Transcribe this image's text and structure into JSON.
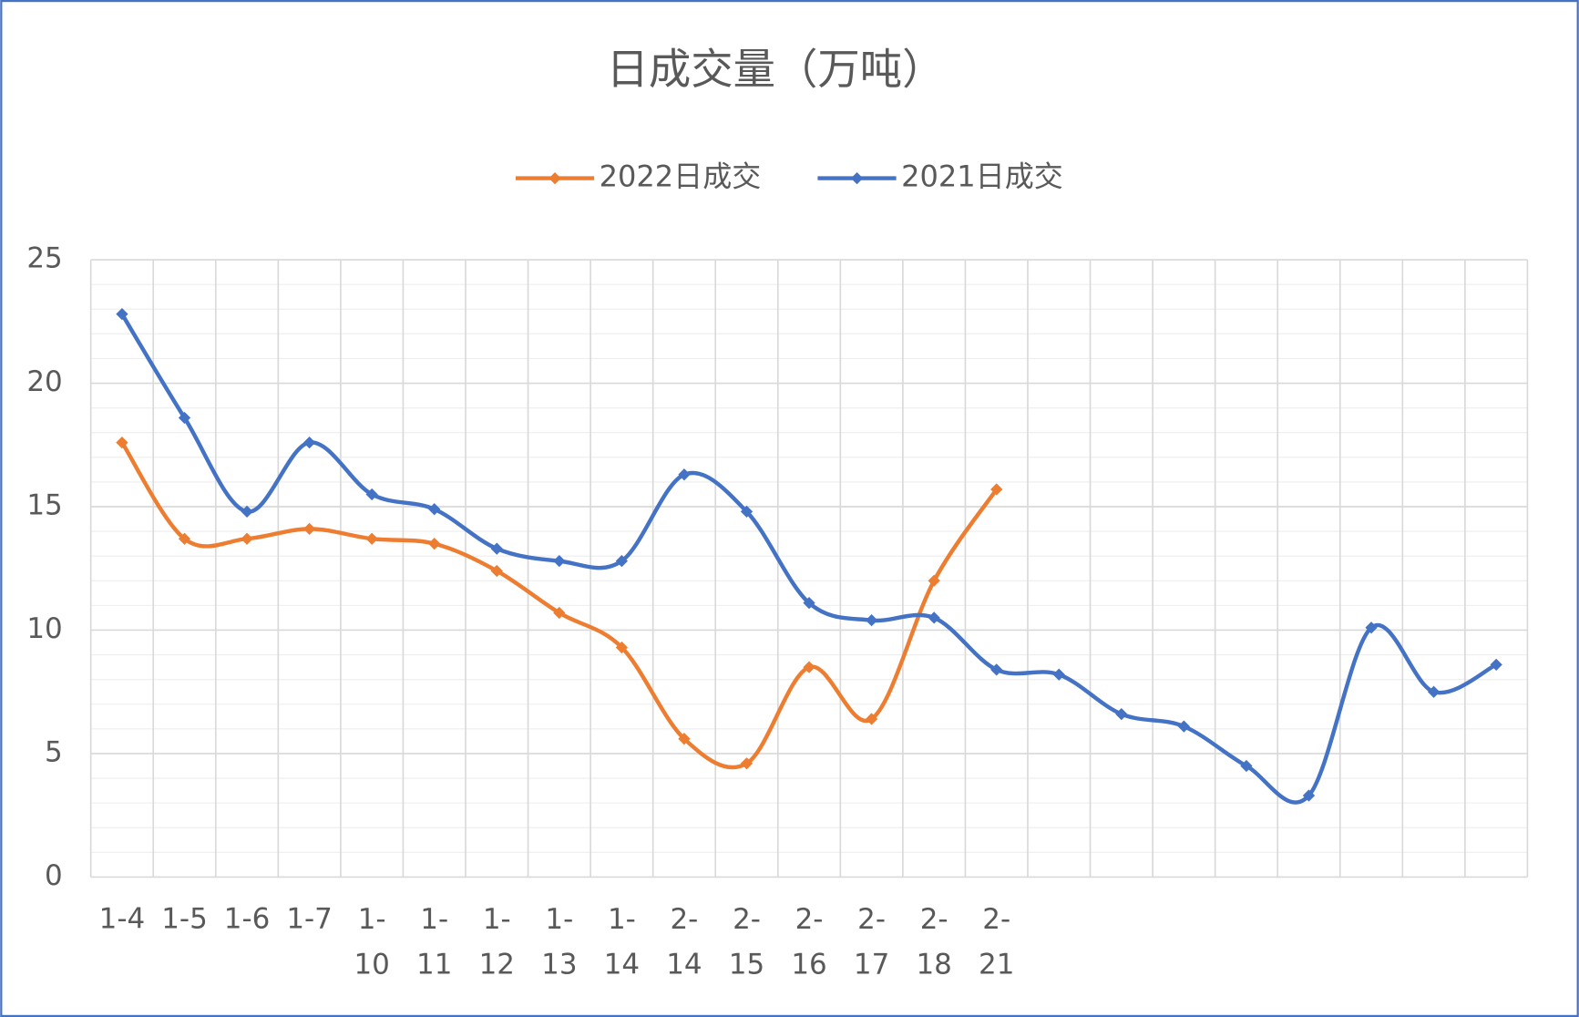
{
  "chart_data": {
    "type": "line",
    "title": "日成交量（万吨）",
    "categories": [
      "1-4",
      "1-5",
      "1-6",
      "1-7",
      "1-10",
      "1-11",
      "1-12",
      "1-13",
      "1-14",
      "2-14",
      "2-15",
      "2-16",
      "2-17",
      "2-18",
      "2-21",
      null,
      null,
      null,
      null,
      null,
      null,
      null,
      null
    ],
    "series": [
      {
        "name": "2022日成交",
        "color": "#ed7d31",
        "values": [
          17.6,
          13.7,
          13.7,
          14.1,
          13.7,
          13.5,
          12.4,
          10.7,
          9.3,
          5.6,
          4.6,
          8.5,
          6.4,
          12.0,
          15.7,
          null,
          null,
          null,
          null,
          null,
          null,
          null,
          null
        ]
      },
      {
        "name": "2021日成交",
        "color": "#4472c4",
        "values": [
          22.8,
          18.6,
          14.8,
          17.6,
          15.5,
          14.9,
          13.3,
          12.8,
          12.8,
          16.3,
          14.8,
          11.1,
          10.4,
          10.5,
          8.4,
          8.2,
          6.6,
          6.1,
          4.5,
          3.3,
          10.1,
          7.5,
          8.6
        ]
      }
    ],
    "ylim": [
      0,
      25
    ],
    "yticks": [
      0,
      5,
      10,
      15,
      20,
      25
    ],
    "grid": true,
    "smooth": true,
    "legend": "top"
  }
}
